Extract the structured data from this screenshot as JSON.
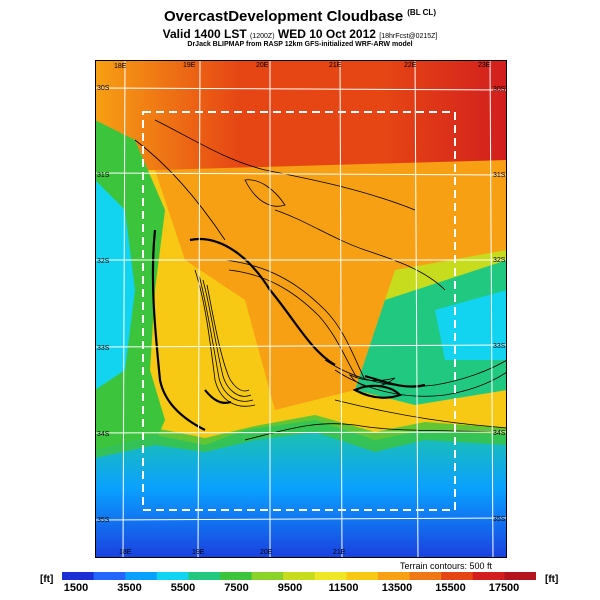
{
  "header": {
    "title": "OvercastDevelopment Cloudbase",
    "title_tag": "(BL CL)",
    "subtitle": "Valid 1400 LST",
    "subtitle_z": "(1200Z)",
    "subtitle_date": "WED 10 Oct 2012",
    "subtitle_run": "[18hrFcst@0215Z]",
    "credit": "DrJack BLIPMAP from RASP 12km GFS-initialized WRF-ARW model"
  },
  "map": {
    "lon_top": [
      "18E",
      "19E",
      "20E",
      "21E",
      "22E",
      "23E"
    ],
    "lon_bottom": [
      "18E",
      "19E",
      "20E",
      "21E"
    ],
    "lat_left": [
      "30S",
      "31S",
      "32S",
      "33S",
      "34S",
      "35S"
    ],
    "lat_right": [
      "30S",
      "31S",
      "32S",
      "33S",
      "34S",
      "35S"
    ]
  },
  "contour_note": "Terrain contours: 500 ft",
  "colorbar": {
    "unit": "[ft]",
    "ticks": [
      "1500",
      "3500",
      "5500",
      "7500",
      "9500",
      "11500",
      "13500",
      "15500",
      "17500"
    ],
    "colors": [
      "#1a2fd6",
      "#2464ff",
      "#0aa0ff",
      "#12d4f0",
      "#20c880",
      "#3cc43c",
      "#8cd228",
      "#c8dc1e",
      "#f0e628",
      "#f7c814",
      "#f7a014",
      "#f07814",
      "#e64614",
      "#d21e1e",
      "#b4141e"
    ]
  }
}
